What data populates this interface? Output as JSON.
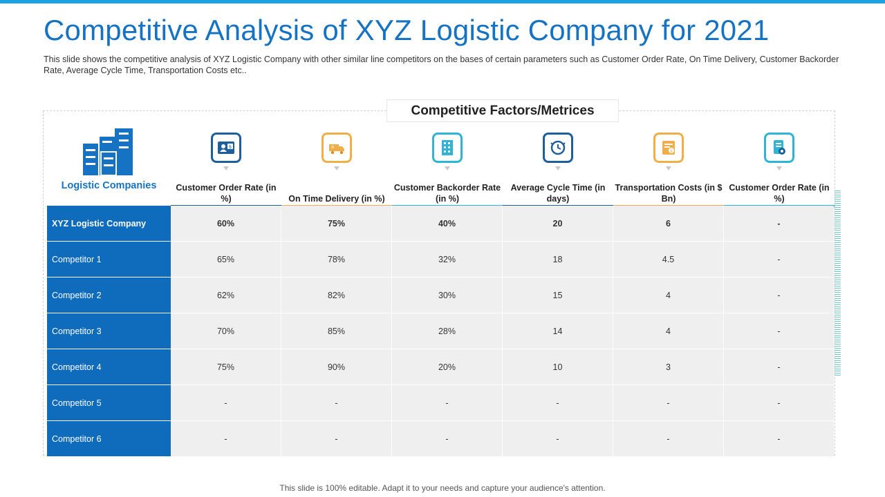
{
  "title": "Competitive Analysis of XYZ Logistic Company for 2021",
  "subtitle": "This slide shows the competitive analysis of XYZ  Logistic Company  with other similar line competitors on the bases of certain parameters such as Customer Order Rate, On Time Delivery, Customer Backorder Rate, Average  Cycle Time, Transportation  Costs etc..",
  "factors_title": "Competitive Factors/Metrices",
  "companies_label": "Logistic Companies",
  "companies_icon": "building-icon",
  "columns": [
    {
      "label": "Customer Order Rate (in %)",
      "icon": "customer-id-icon",
      "color": "#1d5f9c"
    },
    {
      "label": "On Time Delivery (in %)",
      "icon": "delivery-truck-icon",
      "color": "#efae4a"
    },
    {
      "label": "Customer Backorder Rate (in %)",
      "icon": "backorder-building-icon",
      "color": "#2cb5d6"
    },
    {
      "label": "Average Cycle Time (in days)",
      "icon": "cycle-clock-icon",
      "color": "#1d5f9c"
    },
    {
      "label": "Transportation Costs (in $ Bn)",
      "icon": "transport-cost-icon",
      "color": "#efae4a"
    },
    {
      "label": "Customer Order Rate (in %)",
      "icon": "customer-order-icon",
      "color": "#2cb5d6"
    }
  ],
  "rows": [
    {
      "name": "XYZ  Logistic Company",
      "values": [
        "60%",
        "75%",
        "40%",
        "20",
        "6",
        "-"
      ]
    },
    {
      "name": "Competitor 1",
      "values": [
        "65%",
        "78%",
        "32%",
        "18",
        "4.5",
        "-"
      ]
    },
    {
      "name": "Competitor 2",
      "values": [
        "62%",
        "82%",
        "30%",
        "15",
        "4",
        "-"
      ]
    },
    {
      "name": "Competitor 3",
      "values": [
        "70%",
        "85%",
        "28%",
        "14",
        "4",
        "-"
      ]
    },
    {
      "name": "Competitor 4",
      "values": [
        "75%",
        "90%",
        "20%",
        "10",
        "3",
        "-"
      ]
    },
    {
      "name": "Competitor 5",
      "values": [
        "-",
        "-",
        "-",
        "-",
        "-",
        "-"
      ]
    },
    {
      "name": "Competitor 6",
      "values": [
        "-",
        "-",
        "-",
        "-",
        "-",
        "-"
      ]
    }
  ],
  "footer": "This slide is 100% editable. Adapt it to your needs and capture your audience's attention.",
  "colors": {
    "accent_blue": "#1673c4",
    "row_header_blue": "#0f6cbd",
    "orange": "#efae4a",
    "cyan": "#2cb5d6",
    "dark_blue": "#1d5f9c"
  }
}
